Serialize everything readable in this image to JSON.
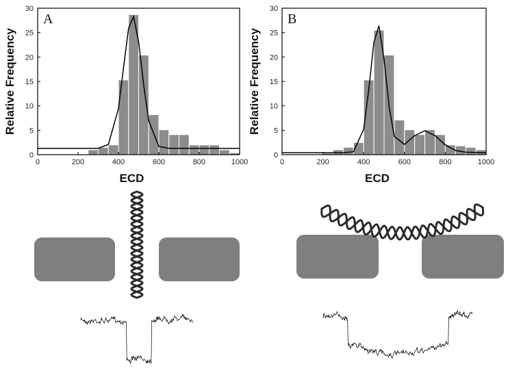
{
  "chart_data": [
    {
      "type": "histogram",
      "title": "A",
      "xlabel": "ECD",
      "ylabel": "Relative Frequency",
      "bins": [
        250,
        300,
        350,
        400,
        450,
        500,
        550,
        600,
        650,
        700,
        750,
        800,
        850,
        900,
        950,
        1000
      ],
      "counts": [
        1,
        1.5,
        2,
        15.3,
        28.7,
        20.4,
        8.2,
        5.1,
        4.1,
        4.1,
        2,
        2,
        2,
        1,
        0.4
      ],
      "color": "#8c8c8c",
      "fit_color": "#000000",
      "fit_x": [
        0,
        300,
        350,
        400,
        425,
        450,
        475,
        500,
        525,
        550,
        600,
        650,
        1000
      ],
      "fit_values": [
        1.3,
        1.3,
        2.1,
        9.4,
        17.8,
        25.9,
        28.3,
        23.1,
        14.2,
        6.9,
        1.7,
        1.3,
        1.3
      ],
      "xlim": [
        0,
        1000
      ],
      "xticks": [
        0,
        200,
        400,
        600,
        800,
        1000
      ],
      "ylim": [
        0,
        30
      ],
      "yticks": [
        0,
        5,
        10,
        15,
        20,
        25,
        30
      ]
    },
    {
      "type": "histogram",
      "title": "B",
      "xlabel": "ECD",
      "ylabel": "Relative Frequency",
      "bins": [
        200,
        250,
        300,
        350,
        400,
        450,
        500,
        550,
        600,
        650,
        700,
        750,
        800,
        850,
        900,
        950,
        1000
      ],
      "counts": [
        0.3,
        1,
        1.5,
        2.5,
        15.3,
        25.5,
        20.4,
        7.1,
        5.1,
        4.1,
        5.1,
        4.1,
        2,
        1.8,
        1.5,
        1
      ],
      "color": "#8c8c8c",
      "fit_color": "#000000",
      "fit_x": [
        0,
        300,
        350,
        400,
        425,
        450,
        475,
        500,
        525,
        550,
        600,
        650,
        700,
        750,
        800,
        850,
        900,
        1000
      ],
      "fit_values": [
        0.4,
        0.4,
        0.6,
        5.2,
        13.3,
        23,
        26.4,
        19.5,
        9.7,
        3.75,
        2.1,
        3.9,
        4.9,
        3.9,
        2,
        0.85,
        0.5,
        0.4
      ],
      "xlim": [
        0,
        1000
      ],
      "xticks": [
        0,
        200,
        400,
        600,
        800,
        1000
      ],
      "ylim": [
        0,
        30
      ],
      "yticks": [
        0,
        5,
        10,
        15,
        20,
        25,
        30
      ]
    }
  ]
}
